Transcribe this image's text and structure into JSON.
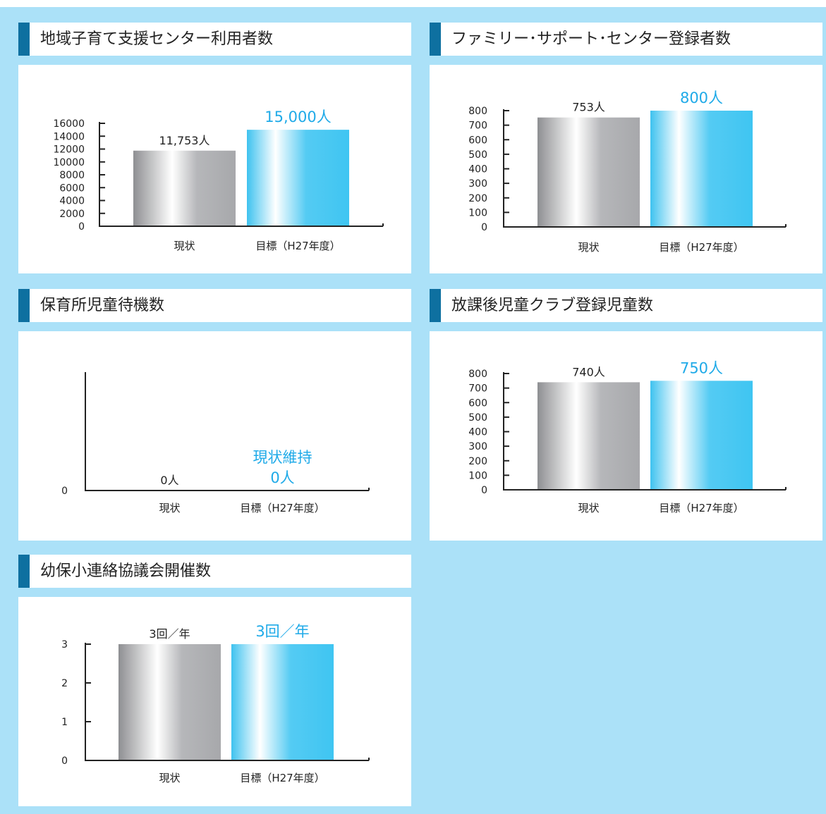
{
  "colors": {
    "background": "#abe1f8",
    "accent_bar": "#0e70a0",
    "highlight_text": "#1faae8",
    "bar_gray": "#a7a8ab",
    "bar_blue": "#3fc5f2"
  },
  "chart_data": [
    {
      "type": "bar",
      "title": "地域子育て支援センター利用者数",
      "categories": [
        "現状",
        "目標（H27年度）"
      ],
      "values": [
        11753,
        15000
      ],
      "value_labels": [
        "11,753人",
        "15,000人"
      ],
      "ylim": [
        0,
        16000
      ],
      "yticks": [
        "0",
        "2000",
        "4000",
        "6000",
        "8000",
        "10000",
        "12000",
        "14000",
        "16000"
      ],
      "grid": false
    },
    {
      "type": "bar",
      "title": "ファミリー･サポート･センター登録者数",
      "categories": [
        "現状",
        "目標（H27年度）"
      ],
      "values": [
        753,
        800
      ],
      "value_labels": [
        "753人",
        "800人"
      ],
      "ylim": [
        0,
        800
      ],
      "yticks": [
        "0",
        "100",
        "200",
        "300",
        "400",
        "500",
        "600",
        "700",
        "800"
      ],
      "grid": false
    },
    {
      "type": "bar",
      "title": "保育所児童待機数",
      "categories": [
        "現状",
        "目標（H27年度）"
      ],
      "values": [
        0,
        0
      ],
      "value_labels": [
        "0人",
        "0人"
      ],
      "extra_label": "現状維持",
      "ylim": [
        0,
        1
      ],
      "yticks": [
        "0"
      ],
      "grid": false
    },
    {
      "type": "bar",
      "title": "放課後児童クラブ登録児童数",
      "categories": [
        "現状",
        "目標（H27年度）"
      ],
      "values": [
        740,
        750
      ],
      "value_labels": [
        "740人",
        "750人"
      ],
      "ylim": [
        0,
        800
      ],
      "yticks": [
        "0",
        "100",
        "200",
        "300",
        "400",
        "500",
        "600",
        "700",
        "800"
      ],
      "grid": false
    },
    {
      "type": "bar",
      "title": "幼保小連絡協議会開催数",
      "categories": [
        "現状",
        "目標（H27年度）"
      ],
      "values": [
        3,
        3
      ],
      "value_labels": [
        "3回／年",
        "3回／年"
      ],
      "ylim": [
        0,
        3
      ],
      "yticks": [
        "0",
        "1",
        "2",
        "3"
      ],
      "grid": false
    }
  ]
}
